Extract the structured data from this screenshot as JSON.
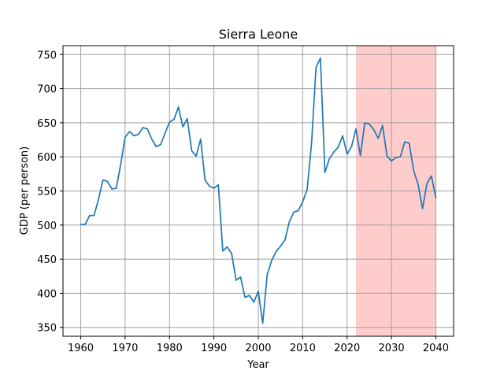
{
  "chart_data": {
    "type": "line",
    "title": "Sierra Leone",
    "xlabel": "Year",
    "ylabel": "GDP (per person)",
    "xlim": [
      1956,
      2044
    ],
    "ylim": [
      337,
      763
    ],
    "xticks": [
      1960,
      1970,
      1980,
      1990,
      2000,
      2010,
      2020,
      2030,
      2040
    ],
    "yticks": [
      350,
      400,
      450,
      500,
      550,
      600,
      650,
      700,
      750
    ],
    "grid": true,
    "highlight_region": {
      "x_start": 2022,
      "x_end": 2040,
      "color": "#ffcccc"
    },
    "series": [
      {
        "color": "#1f77b4",
        "x": [
          1960,
          1961,
          1962,
          1963,
          1964,
          1965,
          1966,
          1967,
          1968,
          1969,
          1970,
          1971,
          1972,
          1973,
          1974,
          1975,
          1976,
          1977,
          1978,
          1979,
          1980,
          1981,
          1982,
          1983,
          1984,
          1985,
          1986,
          1987,
          1988,
          1989,
          1990,
          1991,
          1992,
          1993,
          1994,
          1995,
          1996,
          1997,
          1998,
          1999,
          2000,
          2001,
          2002,
          2003,
          2004,
          2005,
          2006,
          2007,
          2008,
          2009,
          2010,
          2011,
          2012,
          2013,
          2014,
          2015,
          2016,
          2017,
          2018,
          2019,
          2020,
          2021,
          2022,
          2023,
          2024,
          2025,
          2026,
          2027,
          2028,
          2029,
          2030,
          2031,
          2032,
          2033,
          2034,
          2035,
          2036,
          2037,
          2038,
          2039,
          2040
        ],
        "y": [
          501,
          501,
          514,
          514,
          538,
          566,
          564,
          553,
          554,
          589,
          629,
          637,
          631,
          633,
          643,
          641,
          626,
          615,
          618,
          635,
          651,
          655,
          673,
          644,
          656,
          609,
          601,
          626,
          566,
          557,
          554,
          559,
          462,
          468,
          458,
          419,
          424,
          394,
          397,
          387,
          403,
          356,
          427,
          448,
          461,
          469,
          478,
          505,
          519,
          521,
          534,
          552,
          620,
          731,
          745,
          577,
          597,
          607,
          614,
          631,
          604,
          615,
          641,
          602,
          650,
          648,
          640,
          627,
          646,
          601,
          594,
          599,
          600,
          622,
          620,
          580,
          560,
          524,
          561,
          572,
          540
        ]
      }
    ]
  }
}
